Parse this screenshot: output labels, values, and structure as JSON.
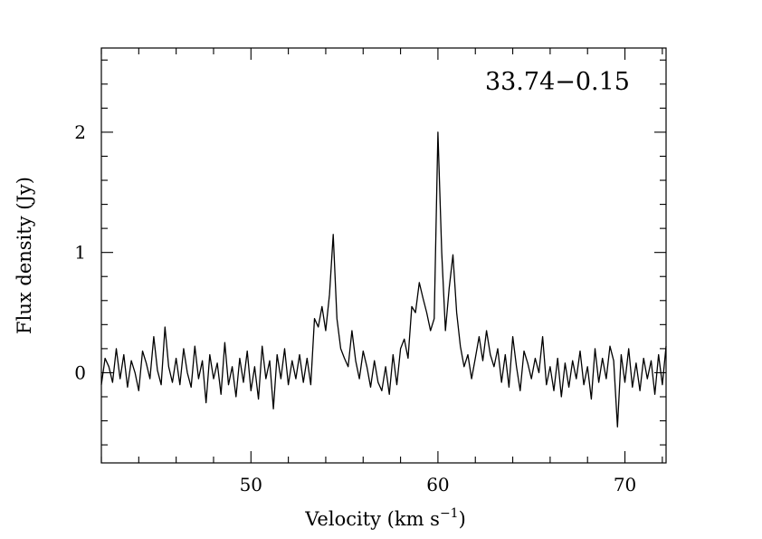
{
  "chart_data": {
    "type": "line",
    "title": "",
    "annotation": "33.74−0.15",
    "xlabel": {
      "text": "Velocity (km s",
      "sup": "−1",
      "close": ")"
    },
    "ylabel": "Flux density (Jy)",
    "xlim": [
      42,
      72.2
    ],
    "ylim": [
      -0.75,
      2.7
    ],
    "x_ticks": [
      50,
      60,
      70
    ],
    "x_tick_labels": [
      "50",
      "60",
      "70"
    ],
    "y_ticks": [
      0,
      1,
      2
    ],
    "y_tick_labels": [
      "0",
      "1",
      "2"
    ],
    "grid": false,
    "series": [
      {
        "x": [
          42.0,
          42.2,
          42.4,
          42.6,
          42.8,
          43.0,
          43.2,
          43.4,
          43.6,
          43.8,
          44.0,
          44.2,
          44.4,
          44.6,
          44.8,
          45.0,
          45.2,
          45.4,
          45.6,
          45.8,
          46.0,
          46.2,
          46.4,
          46.6,
          46.8,
          47.0,
          47.2,
          47.4,
          47.6,
          47.8,
          48.0,
          48.2,
          48.4,
          48.6,
          48.8,
          49.0,
          49.2,
          49.4,
          49.6,
          49.8,
          50.0,
          50.2,
          50.4,
          50.6,
          50.8,
          51.0,
          51.2,
          51.4,
          51.6,
          51.8,
          52.0,
          52.2,
          52.4,
          52.6,
          52.8,
          53.0,
          53.2,
          53.4,
          53.6,
          53.8,
          54.0,
          54.2,
          54.4,
          54.6,
          54.8,
          55.0,
          55.2,
          55.4,
          55.6,
          55.8,
          56.0,
          56.2,
          56.4,
          56.6,
          56.8,
          57.0,
          57.2,
          57.4,
          57.6,
          57.8,
          58.0,
          58.2,
          58.4,
          58.6,
          58.8,
          59.0,
          59.2,
          59.4,
          59.6,
          59.8,
          60.0,
          60.2,
          60.4,
          60.6,
          60.8,
          61.0,
          61.2,
          61.4,
          61.6,
          61.8,
          62.0,
          62.2,
          62.4,
          62.6,
          62.8,
          63.0,
          63.2,
          63.4,
          63.6,
          63.8,
          64.0,
          64.2,
          64.4,
          64.6,
          64.8,
          65.0,
          65.2,
          65.4,
          65.6,
          65.8,
          66.0,
          66.2,
          66.4,
          66.6,
          66.8,
          67.0,
          67.2,
          67.4,
          67.6,
          67.8,
          68.0,
          68.2,
          68.4,
          68.6,
          68.8,
          69.0,
          69.2,
          69.4,
          69.6,
          69.8,
          70.0,
          70.2,
          70.4,
          70.6,
          70.8,
          71.0,
          71.2,
          71.4,
          71.6,
          71.8,
          72.0,
          72.2
        ],
        "y": [
          -0.1,
          0.12,
          0.05,
          -0.08,
          0.2,
          -0.05,
          0.15,
          -0.12,
          0.1,
          0.0,
          -0.15,
          0.18,
          0.08,
          -0.05,
          0.3,
          0.02,
          -0.1,
          0.38,
          0.05,
          -0.08,
          0.12,
          -0.1,
          0.2,
          0.0,
          -0.12,
          0.22,
          -0.05,
          0.1,
          -0.25,
          0.15,
          -0.05,
          0.08,
          -0.18,
          0.25,
          -0.1,
          0.05,
          -0.2,
          0.12,
          -0.08,
          0.18,
          -0.15,
          0.05,
          -0.22,
          0.22,
          -0.05,
          0.1,
          -0.3,
          0.15,
          -0.05,
          0.2,
          -0.1,
          0.1,
          -0.05,
          0.15,
          -0.08,
          0.12,
          -0.1,
          0.45,
          0.38,
          0.55,
          0.35,
          0.65,
          1.15,
          0.45,
          0.2,
          0.12,
          0.05,
          0.35,
          0.1,
          -0.05,
          0.18,
          0.05,
          -0.12,
          0.1,
          -0.08,
          -0.15,
          0.05,
          -0.18,
          0.15,
          -0.1,
          0.2,
          0.28,
          0.12,
          0.55,
          0.5,
          0.75,
          0.62,
          0.5,
          0.35,
          0.45,
          2.0,
          1.0,
          0.35,
          0.7,
          0.98,
          0.5,
          0.22,
          0.05,
          0.15,
          -0.05,
          0.12,
          0.3,
          0.1,
          0.35,
          0.15,
          0.05,
          0.2,
          -0.08,
          0.15,
          -0.12,
          0.3,
          0.05,
          -0.15,
          0.18,
          0.08,
          -0.05,
          0.12,
          0.0,
          0.3,
          -0.1,
          0.05,
          -0.15,
          0.12,
          -0.2,
          0.08,
          -0.12,
          0.1,
          -0.05,
          0.18,
          -0.1,
          0.05,
          -0.22,
          0.2,
          -0.08,
          0.12,
          -0.05,
          0.22,
          0.1,
          -0.45,
          0.15,
          -0.08,
          0.2,
          -0.12,
          0.08,
          -0.15,
          0.12,
          -0.05,
          0.1,
          -0.18,
          0.15,
          -0.1,
          0.22
        ]
      }
    ]
  }
}
